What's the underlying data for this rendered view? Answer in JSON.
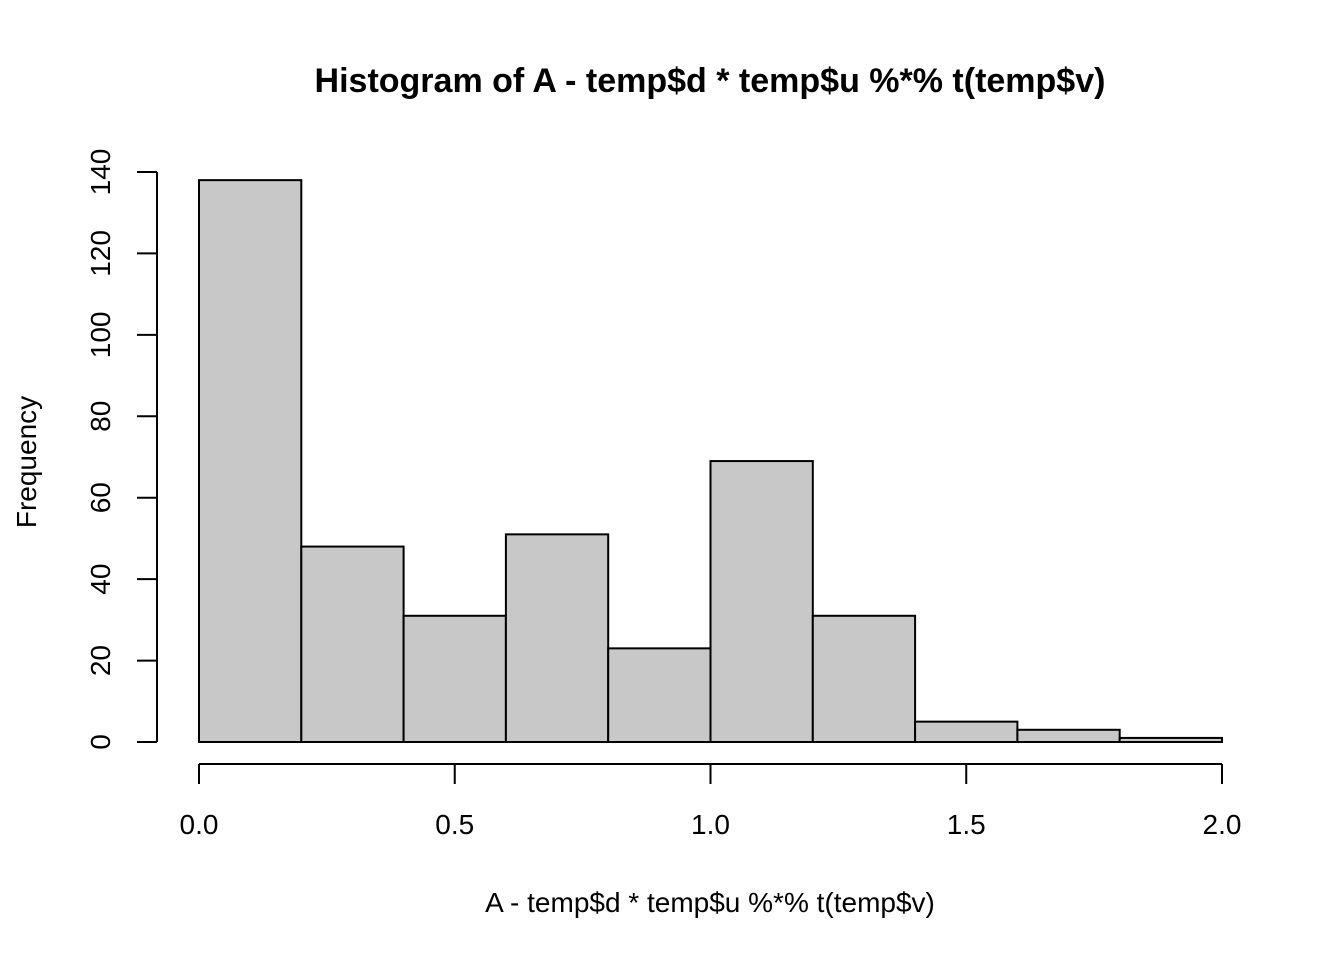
{
  "chart_data": {
    "type": "bar",
    "title": "Histogram of A - temp$d * temp$u %*% t(temp$v)",
    "xlabel": "A - temp$d * temp$u %*% t(temp$v)",
    "ylabel": "Frequency",
    "bin_edges": [
      0.0,
      0.2,
      0.4,
      0.6,
      0.8,
      1.0,
      1.2,
      1.4,
      1.6,
      1.8,
      2.0
    ],
    "values": [
      138,
      48,
      31,
      51,
      23,
      69,
      31,
      5,
      3,
      1
    ],
    "xlim": [
      0.0,
      2.0
    ],
    "ylim": [
      0,
      140
    ],
    "x_ticks": [
      "0.0",
      "0.5",
      "1.0",
      "1.5",
      "2.0"
    ],
    "y_ticks": [
      "0",
      "20",
      "40",
      "60",
      "80",
      "100",
      "120",
      "140"
    ],
    "grid": false,
    "colors": {
      "bar_fill": "#c8c8c8",
      "bar_stroke": "#000000"
    }
  }
}
